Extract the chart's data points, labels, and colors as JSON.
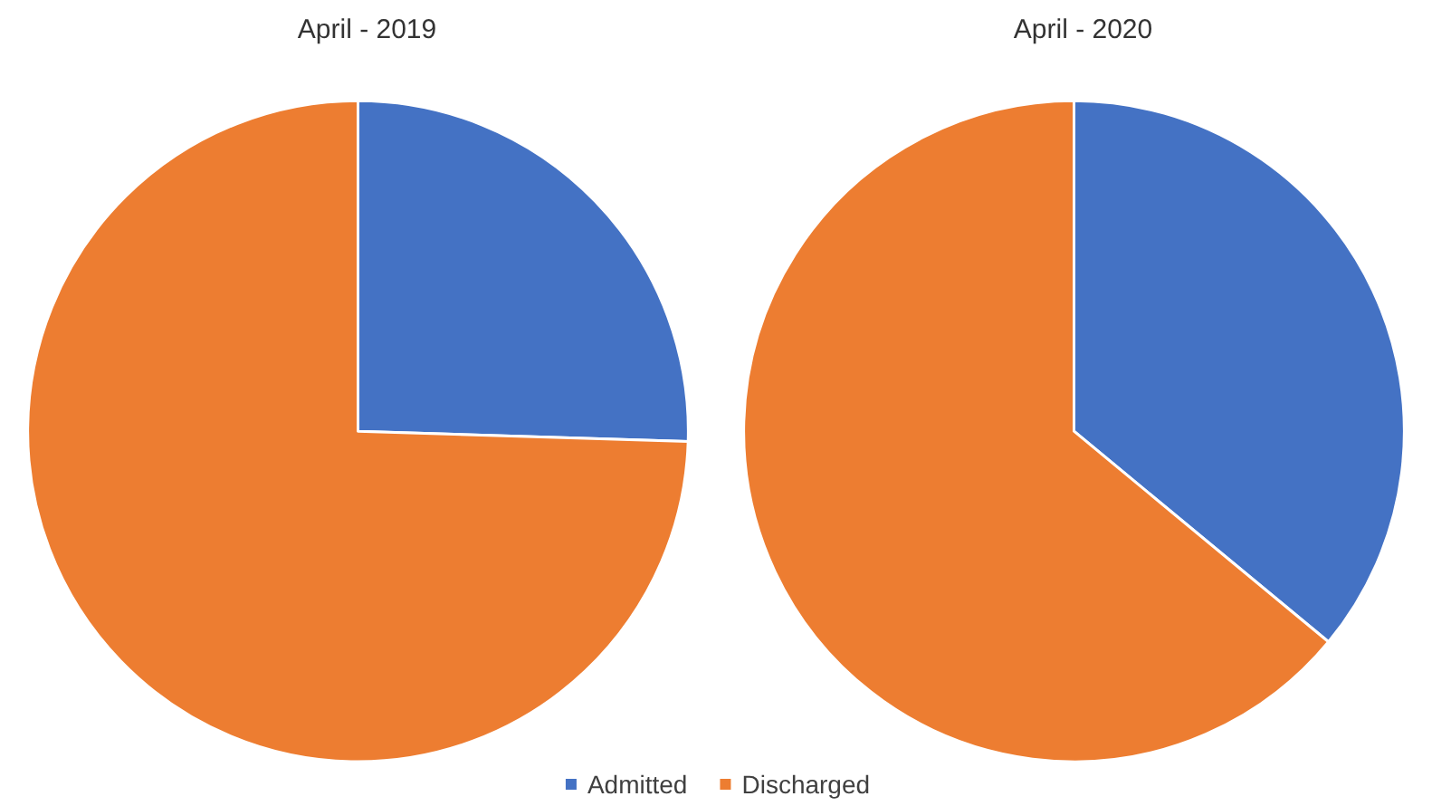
{
  "chart_data": [
    {
      "type": "pie",
      "title": "April - 2019",
      "categories": [
        "Admitted",
        "Discharged"
      ],
      "values": [
        25.5,
        74.5
      ],
      "colors": [
        "#4472c4",
        "#ed7d31"
      ],
      "legend": "bottom"
    },
    {
      "type": "pie",
      "title": "April - 2020",
      "values": [
        36,
        64
      ],
      "colors": [
        "#4472c4",
        "#ed7d31"
      ],
      "legend": false
    }
  ]
}
